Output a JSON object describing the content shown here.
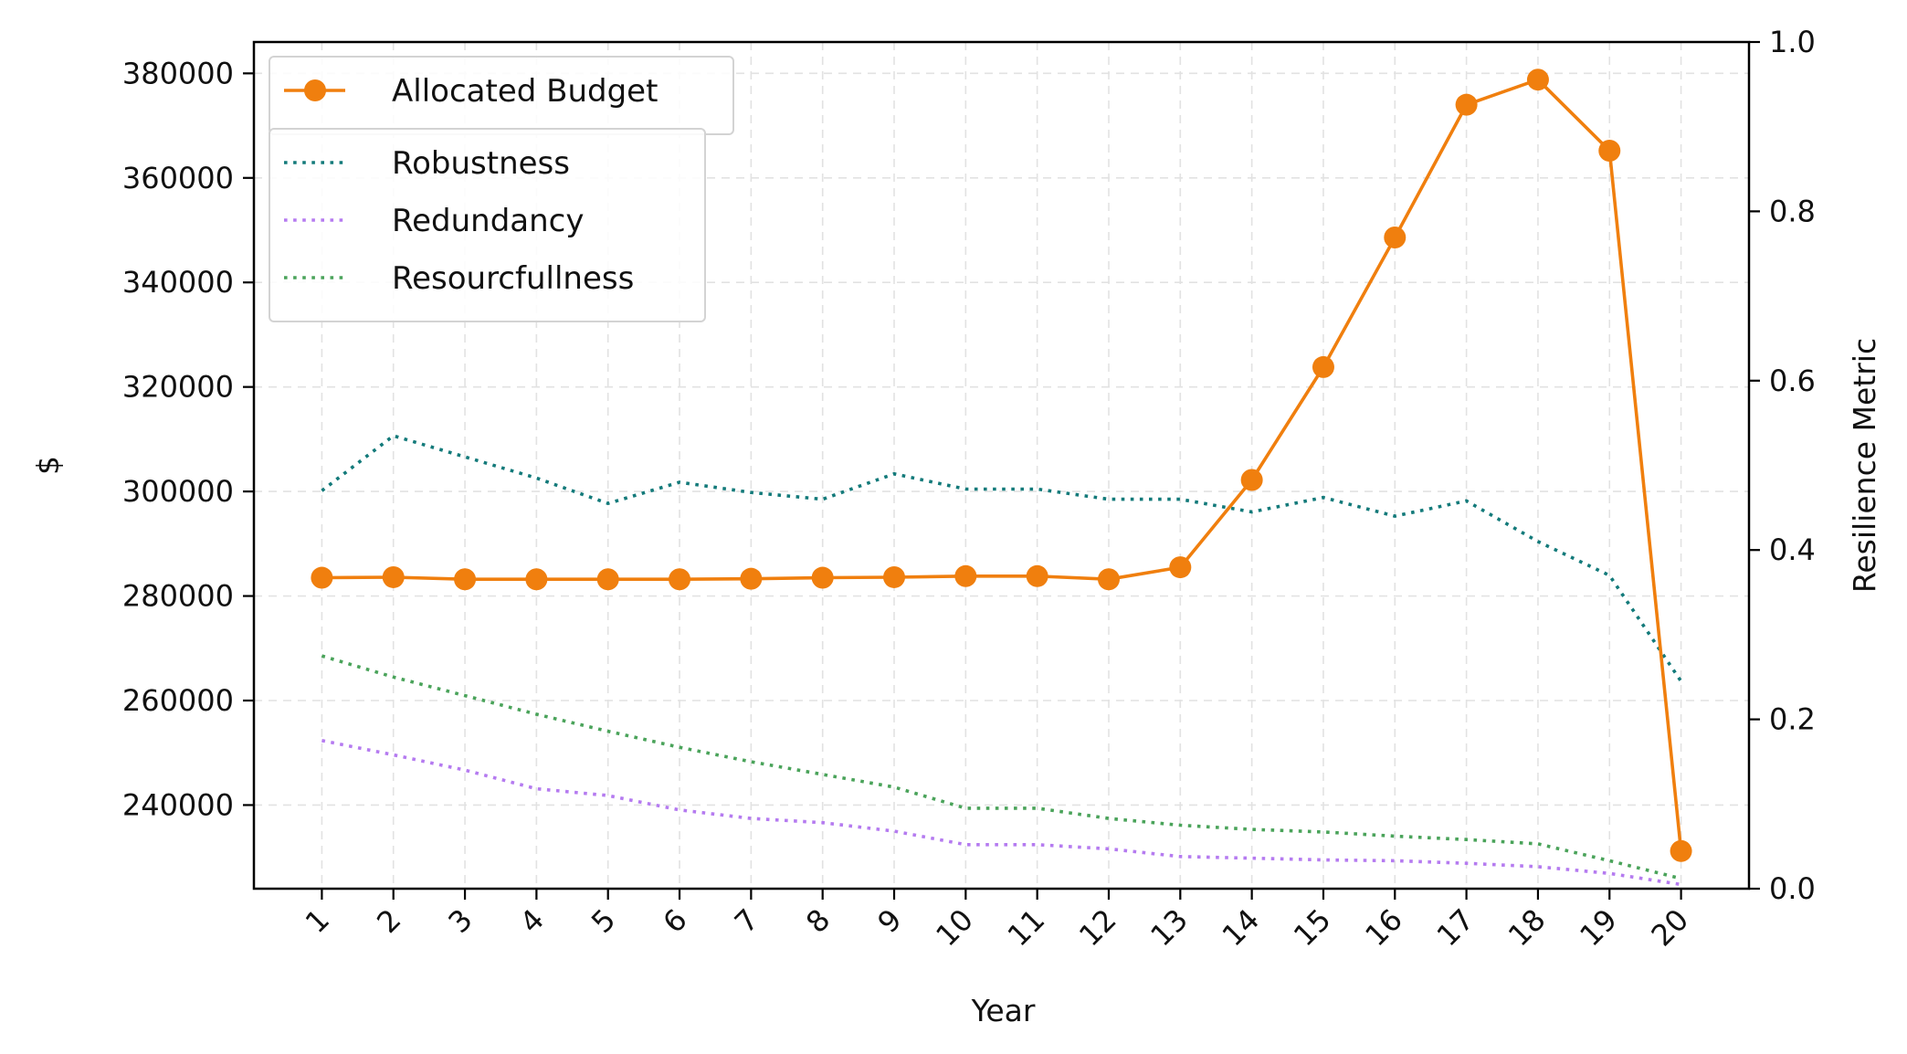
{
  "chart_data": {
    "type": "line",
    "title": "",
    "xlabel": "Year",
    "ylabel_left": "$",
    "ylabel_right": "Resilience Metric",
    "x": [
      1,
      2,
      3,
      4,
      5,
      6,
      7,
      8,
      9,
      10,
      11,
      12,
      13,
      14,
      15,
      16,
      17,
      18,
      19,
      20
    ],
    "x_tick_labels": [
      "1",
      "2",
      "3",
      "4",
      "5",
      "6",
      "7",
      "8",
      "9",
      "10",
      "11",
      "12",
      "13",
      "14",
      "15",
      "16",
      "17",
      "18",
      "19",
      "20"
    ],
    "ylim_left": [
      224000,
      386000
    ],
    "ylim_right": [
      0,
      1
    ],
    "y_ticks_left": [
      240000,
      260000,
      280000,
      300000,
      320000,
      340000,
      360000,
      380000
    ],
    "y_tick_labels_left": [
      "240000",
      "260000",
      "280000",
      "300000",
      "320000",
      "340000",
      "360000",
      "380000"
    ],
    "y_ticks_right": [
      0,
      0.2,
      0.4,
      0.6,
      0.8,
      1.0
    ],
    "y_tick_labels_right": [
      "0.0",
      "0.2",
      "0.4",
      "0.6",
      "0.8",
      "1.0"
    ],
    "grid": true,
    "series": [
      {
        "name": "Allocated Budget",
        "axis": "left",
        "style": "solid-marker",
        "color": "#f07f0e",
        "values": [
          283500,
          283600,
          283200,
          283200,
          283200,
          283200,
          283300,
          283500,
          283600,
          283800,
          283800,
          283200,
          285500,
          302200,
          323800,
          348600,
          374000,
          378800,
          365200,
          231200
        ]
      },
      {
        "name": "Robustness",
        "axis": "right",
        "style": "dotted",
        "color": "#137a7a",
        "values": [
          0.47,
          0.535,
          0.51,
          0.485,
          0.455,
          0.48,
          0.468,
          0.46,
          0.49,
          0.472,
          0.472,
          0.46,
          0.46,
          0.445,
          0.462,
          0.44,
          0.458,
          0.41,
          0.37,
          0.245
        ]
      },
      {
        "name": "Redundancy",
        "axis": "right",
        "style": "dotted",
        "color": "#b57bf0",
        "values": [
          0.175,
          0.158,
          0.14,
          0.118,
          0.11,
          0.093,
          0.083,
          0.078,
          0.068,
          0.052,
          0.052,
          0.047,
          0.038,
          0.036,
          0.034,
          0.033,
          0.03,
          0.026,
          0.018,
          0.005
        ]
      },
      {
        "name": "Resourcfullness",
        "axis": "right",
        "style": "dotted",
        "color": "#4aa35a",
        "values": [
          0.275,
          0.25,
          0.228,
          0.206,
          0.186,
          0.167,
          0.15,
          0.135,
          0.12,
          0.095,
          0.095,
          0.083,
          0.075,
          0.07,
          0.067,
          0.062,
          0.058,
          0.053,
          0.033,
          0.012
        ]
      }
    ],
    "legends": [
      {
        "placement": "top-left",
        "entries": [
          "Allocated Budget"
        ]
      },
      {
        "placement": "upper-left",
        "entries": [
          "Robustness",
          "Redundancy",
          "Resourcfullness"
        ]
      }
    ]
  }
}
